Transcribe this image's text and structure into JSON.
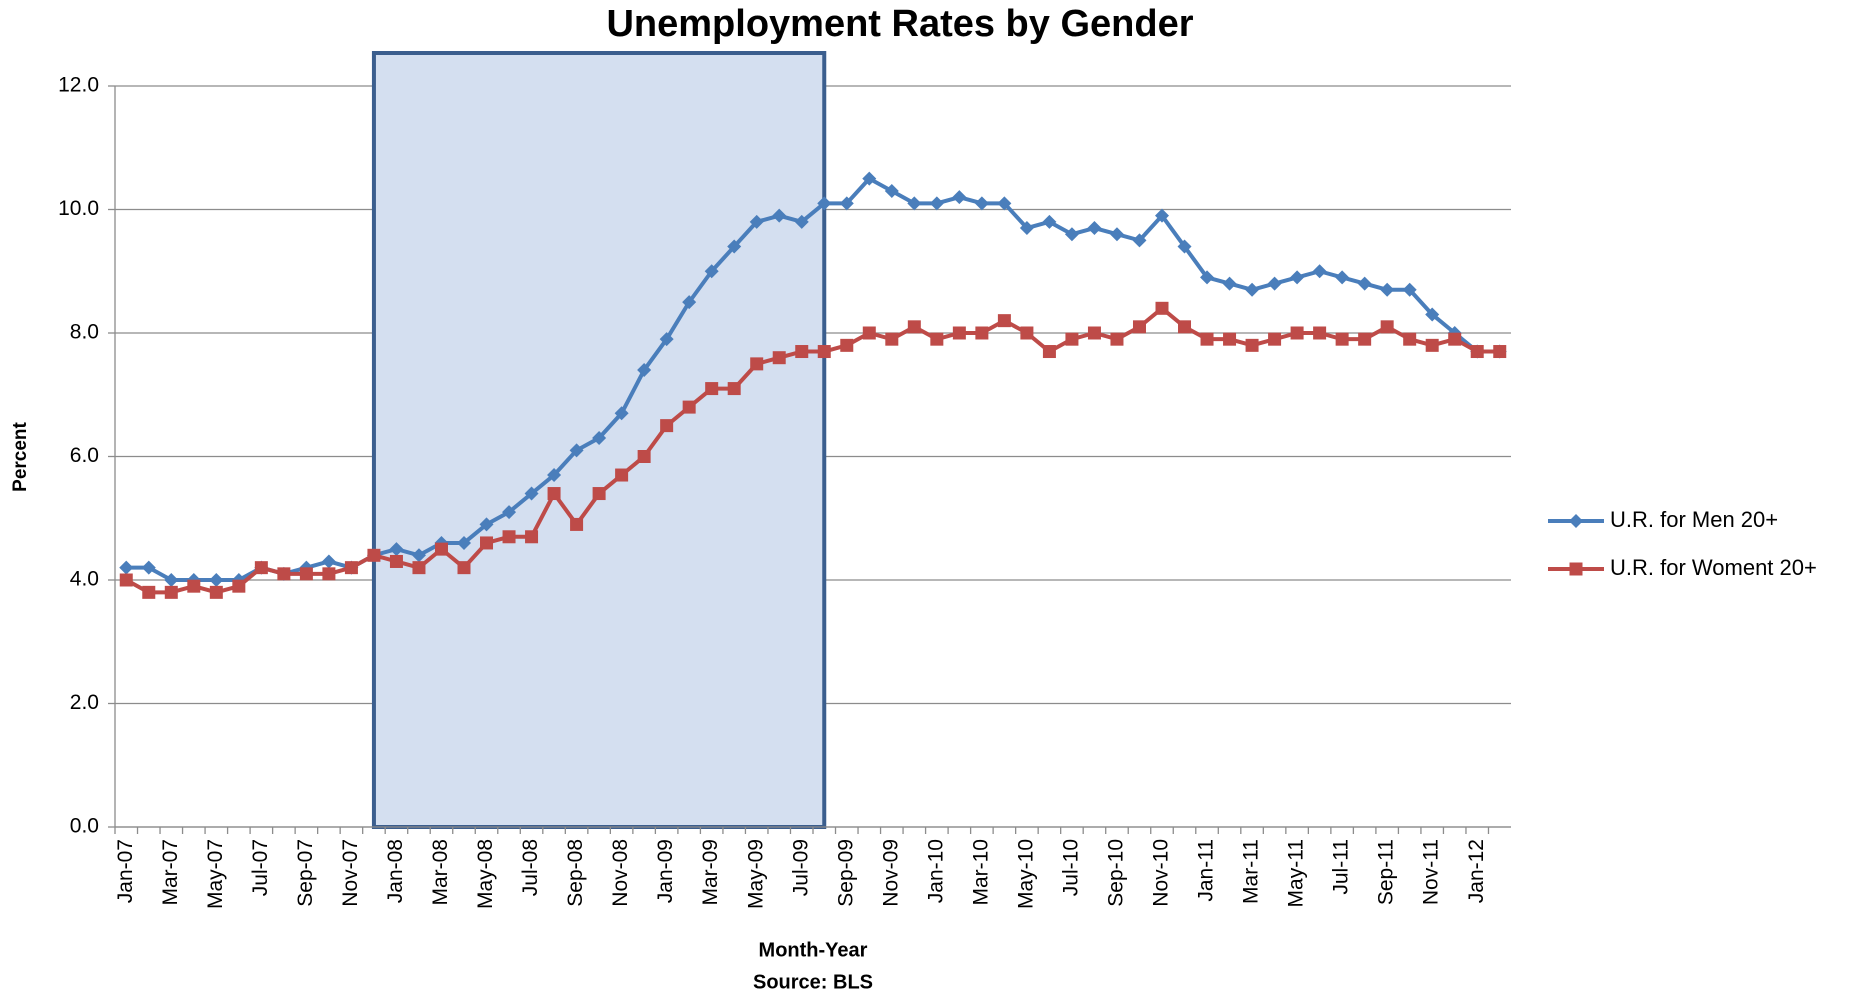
{
  "chart_data": {
    "type": "line",
    "title": "Unemployment Rates by Gender",
    "xlabel": "Month-Year",
    "source": "Source:  BLS",
    "ylabel": "Percent",
    "categories": [
      "Jan-07",
      null,
      "Mar-07",
      null,
      "May-07",
      null,
      "Jul-07",
      null,
      "Sep-07",
      null,
      "Nov-07",
      null,
      "Jan-08",
      null,
      "Mar-08",
      null,
      "May-08",
      null,
      "Jul-08",
      null,
      "Sep-08",
      null,
      "Nov-08",
      null,
      "Jan-09",
      null,
      "Mar-09",
      null,
      "May-09",
      null,
      "Jul-09",
      null,
      "Sep-09",
      null,
      "Nov-09",
      null,
      "Jan-10",
      null,
      "Mar-10",
      null,
      "May-10",
      null,
      "Jul-10",
      null,
      "Sep-10",
      null,
      "Nov-10",
      null,
      "Jan-11",
      null,
      "Mar-11",
      null,
      "May-11",
      null,
      "Jul-11",
      null,
      "Sep-11",
      null,
      "Nov-11",
      null,
      "Jan-12",
      null
    ],
    "series": [
      {
        "name": "U.R. for Men 20+",
        "color": "#4a7ebb",
        "marker": "diamond",
        "values": [
          4.2,
          4.2,
          4.0,
          4.0,
          4.0,
          4.0,
          4.2,
          4.1,
          4.2,
          4.3,
          4.2,
          4.4,
          4.5,
          4.4,
          4.6,
          4.6,
          4.9,
          5.1,
          5.4,
          5.7,
          6.1,
          6.3,
          6.7,
          7.4,
          7.9,
          8.5,
          9.0,
          9.4,
          9.8,
          9.9,
          9.8,
          10.1,
          10.1,
          10.5,
          10.3,
          10.1,
          10.1,
          10.2,
          10.1,
          10.1,
          9.7,
          9.8,
          9.6,
          9.7,
          9.6,
          9.5,
          9.9,
          9.4,
          8.9,
          8.8,
          8.7,
          8.8,
          8.9,
          9.0,
          8.9,
          8.8,
          8.7,
          8.7,
          8.3,
          8.0,
          7.7,
          7.7
        ]
      },
      {
        "name": "U.R. for Woment 20+",
        "color": "#be4b48",
        "marker": "square",
        "values": [
          4.0,
          3.8,
          3.8,
          3.9,
          3.8,
          3.9,
          4.2,
          4.1,
          4.1,
          4.1,
          4.2,
          4.4,
          4.3,
          4.2,
          4.5,
          4.2,
          4.6,
          4.7,
          4.7,
          5.4,
          4.9,
          5.4,
          5.7,
          6.0,
          6.5,
          6.8,
          7.1,
          7.1,
          7.5,
          7.6,
          7.7,
          7.7,
          7.8,
          8.0,
          7.9,
          8.1,
          7.9,
          8.0,
          8.0,
          8.2,
          8.0,
          7.7,
          7.9,
          8.0,
          7.9,
          8.1,
          8.4,
          8.1,
          7.9,
          7.9,
          7.8,
          7.9,
          8.0,
          8.0,
          7.9,
          7.9,
          8.1,
          7.9,
          7.8,
          7.9,
          7.7,
          7.7
        ]
      }
    ],
    "highlight": {
      "from": 11,
      "to": 31,
      "color": "#d4dff0",
      "border": "#3b5e8e"
    },
    "ylim": [
      0,
      12
    ],
    "yticks": [
      {
        "value": 0,
        "label": "0.0"
      },
      {
        "value": 2,
        "label": "2.0"
      },
      {
        "value": 4,
        "label": "4.0"
      },
      {
        "value": 6,
        "label": "6.0"
      },
      {
        "value": 8,
        "label": "8.0"
      },
      {
        "value": 10,
        "label": "10.0"
      },
      {
        "value": 12,
        "label": "12.0"
      }
    ],
    "grid": true,
    "legend": "right"
  }
}
